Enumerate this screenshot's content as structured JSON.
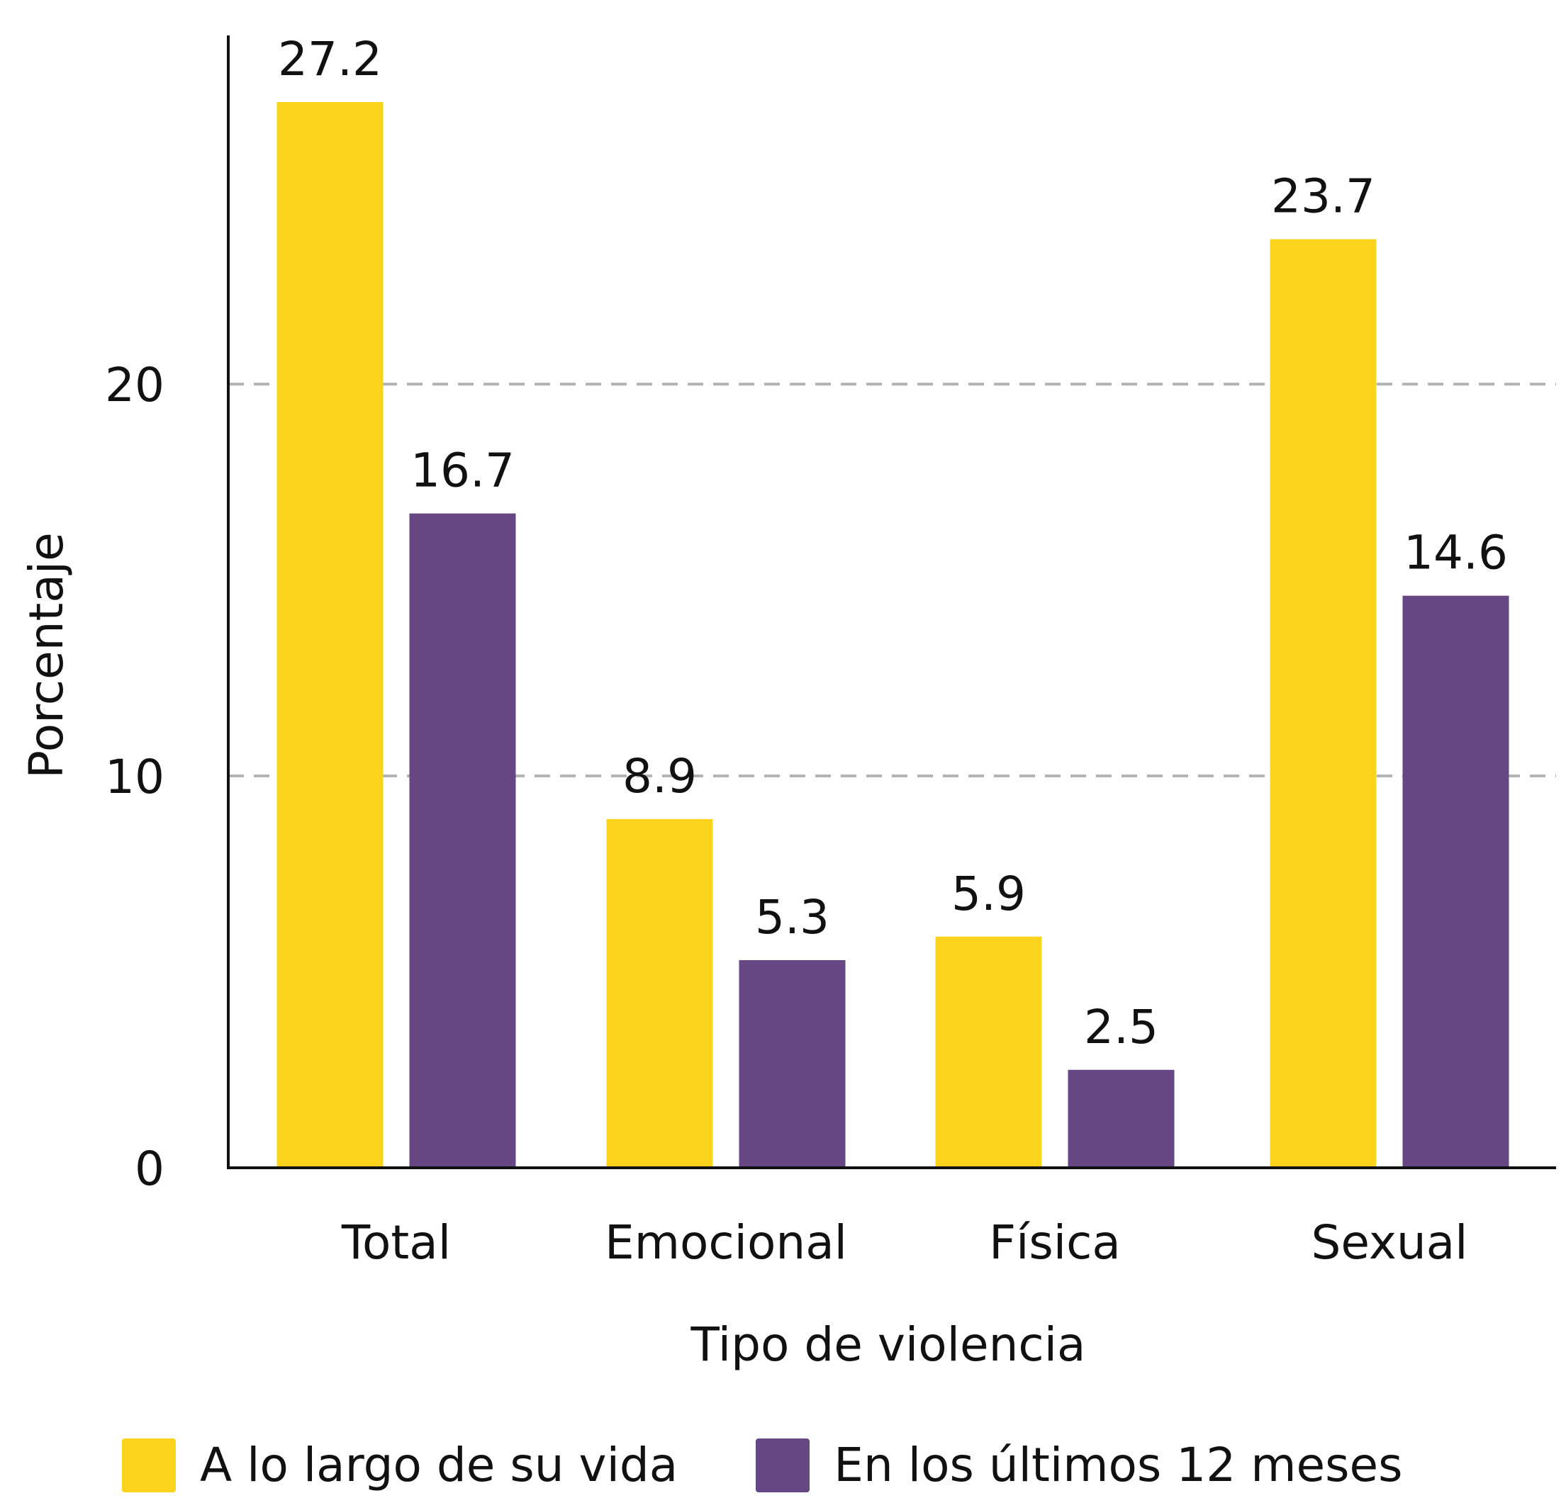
{
  "chart_data": {
    "type": "bar",
    "categories": [
      "Total",
      "Emocional",
      "Física",
      "Sexual"
    ],
    "series": [
      {
        "name": "A lo largo de su vida",
        "color": "#FCD31C",
        "values": [
          27.2,
          8.9,
          5.9,
          23.7
        ]
      },
      {
        "name": "En los últimos 12 meses",
        "color": "#664683",
        "values": [
          16.7,
          5.3,
          2.5,
          14.6
        ]
      }
    ],
    "xlabel": "Tipo de violencia",
    "ylabel": "Porcentaje",
    "ylim": [
      0,
      28.9
    ],
    "yticks": [
      0,
      10,
      20
    ],
    "ytick_labels": [
      "0",
      "10",
      "20"
    ],
    "data_labels": [
      [
        "27.2",
        "8.9",
        "5.9",
        "23.7"
      ],
      [
        "16.7",
        "5.3",
        "2.5",
        "14.6"
      ]
    ],
    "grid": "horizontal dashed",
    "legend_position": "bottom"
  }
}
